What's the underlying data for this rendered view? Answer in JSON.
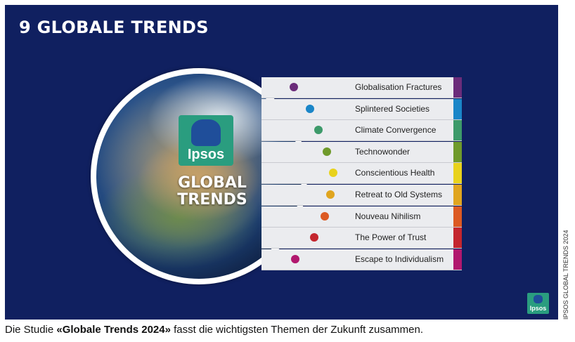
{
  "title": "9 GLOBALE TRENDS",
  "logo": {
    "brand": "Ipsos",
    "subtitle_line1": "GLOBAL",
    "subtitle_line2": "TRENDS"
  },
  "trends": [
    {
      "label": "Globalisation Fractures",
      "color": "#6b2c7a"
    },
    {
      "label": "Splintered Societies",
      "color": "#1a86c8"
    },
    {
      "label": "Climate Convergence",
      "color": "#3d9a6a"
    },
    {
      "label": "Technowonder",
      "color": "#6f9a2b"
    },
    {
      "label": "Conscientious Health",
      "color": "#e8d21c"
    },
    {
      "label": "Retreat to Old Systems",
      "color": "#e0a51f"
    },
    {
      "label": "Nouveau Nihilism",
      "color": "#dc5a23"
    },
    {
      "label": "The Power of Trust",
      "color": "#c4262e"
    },
    {
      "label": "Escape to Individualism",
      "color": "#b1176e"
    }
  ],
  "small_logo_text": "Ipsos",
  "credit": "IPSOS GLOBAL TRENDS 2024",
  "caption": {
    "prefix": "Die Studie ",
    "highlight": "«Globale Trends 2024»",
    "suffix": " fasst die wichtigsten Themen der Zukunft zusammen."
  }
}
